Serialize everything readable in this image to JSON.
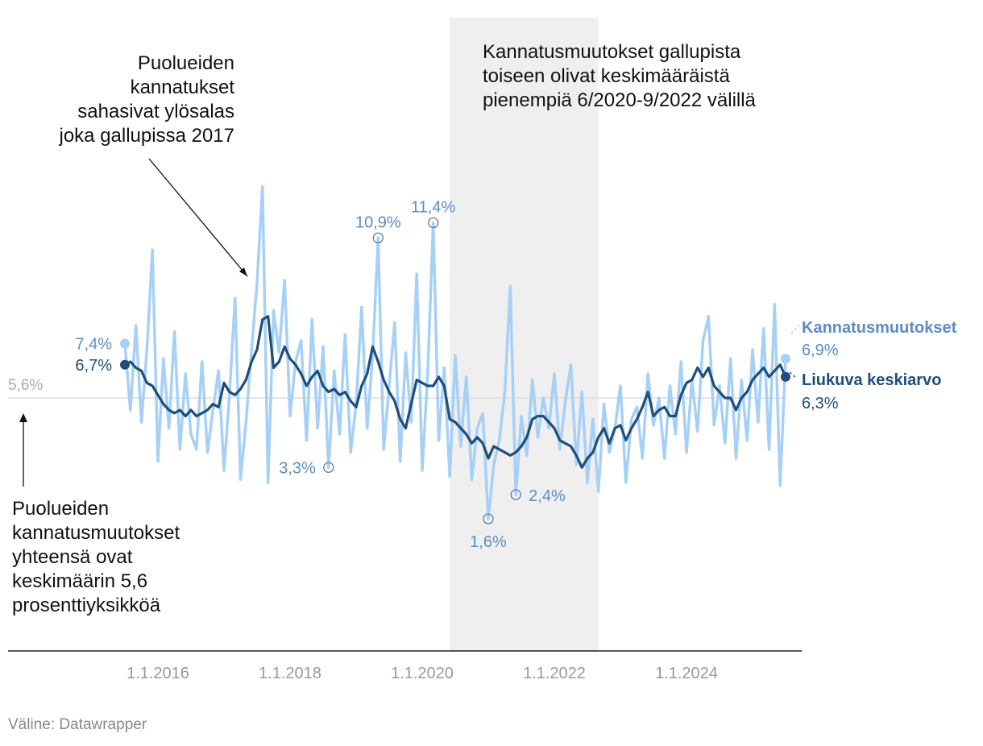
{
  "chart_data": {
    "type": "line",
    "x_ticks": [
      "1.1.2016",
      "1.1.2018",
      "1.1.2020",
      "1.1.2022",
      "1.1.2024"
    ],
    "reference_line": {
      "value": 5.6,
      "label": "5,6%"
    },
    "shaded_period": {
      "start": "2020-06",
      "end": "2022-09"
    },
    "series": [
      {
        "name": "Kannatusmuutokset",
        "color": "#a7d0f7",
        "end_label": "6,9%",
        "x": [
          "2015-07",
          "2015-08",
          "2015-09",
          "2015-10",
          "2015-11",
          "2015-12",
          "2016-01",
          "2016-02",
          "2016-03",
          "2016-04",
          "2016-05",
          "2016-06",
          "2016-07",
          "2016-08",
          "2016-09",
          "2016-10",
          "2016-11",
          "2016-12",
          "2017-01",
          "2017-02",
          "2017-03",
          "2017-04",
          "2017-05",
          "2017-06",
          "2017-07",
          "2017-08",
          "2017-09",
          "2017-10",
          "2017-11",
          "2017-12",
          "2018-01",
          "2018-02",
          "2018-03",
          "2018-04",
          "2018-05",
          "2018-06",
          "2018-07",
          "2018-08",
          "2018-09",
          "2018-10",
          "2018-11",
          "2018-12",
          "2019-01",
          "2019-02",
          "2019-03",
          "2019-04",
          "2019-05",
          "2019-06",
          "2019-07",
          "2019-08",
          "2019-09",
          "2019-10",
          "2019-11",
          "2019-12",
          "2020-01",
          "2020-02",
          "2020-03",
          "2020-04",
          "2020-05",
          "2020-06",
          "2020-07",
          "2020-08",
          "2020-09",
          "2020-10",
          "2020-11",
          "2020-12",
          "2021-01",
          "2021-02",
          "2021-03",
          "2021-04",
          "2021-05",
          "2021-06",
          "2021-07",
          "2021-08",
          "2021-09",
          "2021-10",
          "2021-11",
          "2021-12",
          "2022-01",
          "2022-02",
          "2022-03",
          "2022-04",
          "2022-05",
          "2022-06",
          "2022-07",
          "2022-08",
          "2022-09",
          "2022-10",
          "2022-11",
          "2022-12",
          "2023-01",
          "2023-02",
          "2023-03",
          "2023-04",
          "2023-05",
          "2023-06",
          "2023-07",
          "2023-08",
          "2023-09",
          "2023-10",
          "2023-11",
          "2023-12",
          "2024-01",
          "2024-02",
          "2024-03",
          "2024-04",
          "2024-05",
          "2024-06",
          "2024-07",
          "2024-08",
          "2024-09",
          "2024-10",
          "2024-11",
          "2024-12",
          "2025-01",
          "2025-02",
          "2025-03",
          "2025-04",
          "2025-05",
          "2025-06",
          "2025-07"
        ],
        "values": [
          7.4,
          5.2,
          8.0,
          4.8,
          7.2,
          10.5,
          3.5,
          6.9,
          4.6,
          7.8,
          3.9,
          6.4,
          4.4,
          3.9,
          6.8,
          3.8,
          5.2,
          6.5,
          3.2,
          5.7,
          8.9,
          2.9,
          4.8,
          7.2,
          9.4,
          12.6,
          2.8,
          8.5,
          7.1,
          9.5,
          5.0,
          6.8,
          7.5,
          4.2,
          8.2,
          4.6,
          7.3,
          3.3,
          6.5,
          4.4,
          7.7,
          3.8,
          5.4,
          8.6,
          4.6,
          7.0,
          10.9,
          3.9,
          6.0,
          8.1,
          3.5,
          7.1,
          4.8,
          9.7,
          3.2,
          6.4,
          11.4,
          4.2,
          6.6,
          3.0,
          7.0,
          4.0,
          6.3,
          2.9,
          4.6,
          5.1,
          1.6,
          3.4,
          4.2,
          5.8,
          9.3,
          2.4,
          5.0,
          3.7,
          6.2,
          4.3,
          5.6,
          4.6,
          6.4,
          3.9,
          5.5,
          6.7,
          3.4,
          5.8,
          2.8,
          4.9,
          2.5,
          5.4,
          3.8,
          4.6,
          6.0,
          2.8,
          4.9,
          5.3,
          3.6,
          6.4,
          4.7,
          5.6,
          3.6,
          6.0,
          4.4,
          6.8,
          3.8,
          6.2,
          4.5,
          7.5,
          8.3,
          4.7,
          6.0,
          4.1,
          6.9,
          3.6,
          6.2,
          4.2,
          7.2,
          4.8,
          7.9,
          3.9,
          8.7,
          2.7,
          6.9
        ]
      },
      {
        "name": "Liukuva keskiarvo",
        "color": "#1f4e79",
        "end_label": "6,3%",
        "x": [
          "2015-07",
          "2015-08",
          "2015-09",
          "2015-10",
          "2015-11",
          "2015-12",
          "2016-01",
          "2016-02",
          "2016-03",
          "2016-04",
          "2016-05",
          "2016-06",
          "2016-07",
          "2016-08",
          "2016-09",
          "2016-10",
          "2016-11",
          "2016-12",
          "2017-01",
          "2017-02",
          "2017-03",
          "2017-04",
          "2017-05",
          "2017-06",
          "2017-07",
          "2017-08",
          "2017-09",
          "2017-10",
          "2017-11",
          "2017-12",
          "2018-01",
          "2018-02",
          "2018-03",
          "2018-04",
          "2018-05",
          "2018-06",
          "2018-07",
          "2018-08",
          "2018-09",
          "2018-10",
          "2018-11",
          "2018-12",
          "2019-01",
          "2019-02",
          "2019-03",
          "2019-04",
          "2019-05",
          "2019-06",
          "2019-07",
          "2019-08",
          "2019-09",
          "2019-10",
          "2019-11",
          "2019-12",
          "2020-01",
          "2020-02",
          "2020-03",
          "2020-04",
          "2020-05",
          "2020-06",
          "2020-07",
          "2020-08",
          "2020-09",
          "2020-10",
          "2020-11",
          "2020-12",
          "2021-01",
          "2021-02",
          "2021-03",
          "2021-04",
          "2021-05",
          "2021-06",
          "2021-07",
          "2021-08",
          "2021-09",
          "2021-10",
          "2021-11",
          "2021-12",
          "2022-01",
          "2022-02",
          "2022-03",
          "2022-04",
          "2022-05",
          "2022-06",
          "2022-07",
          "2022-08",
          "2022-09",
          "2022-10",
          "2022-11",
          "2022-12",
          "2023-01",
          "2023-02",
          "2023-03",
          "2023-04",
          "2023-05",
          "2023-06",
          "2023-07",
          "2023-08",
          "2023-09",
          "2023-10",
          "2023-11",
          "2023-12",
          "2024-01",
          "2024-02",
          "2024-03",
          "2024-04",
          "2024-05",
          "2024-06",
          "2024-07",
          "2024-08",
          "2024-09",
          "2024-10",
          "2024-11",
          "2024-12",
          "2025-01",
          "2025-02",
          "2025-03",
          "2025-04",
          "2025-05",
          "2025-06",
          "2025-07"
        ],
        "values": [
          6.7,
          6.8,
          6.6,
          6.5,
          6.1,
          6.0,
          5.7,
          5.4,
          5.2,
          5.1,
          5.2,
          5.0,
          5.2,
          5.0,
          5.1,
          5.2,
          5.4,
          5.3,
          6.1,
          5.8,
          5.7,
          5.9,
          6.2,
          6.8,
          7.2,
          8.2,
          8.3,
          6.6,
          6.8,
          7.3,
          6.9,
          6.7,
          6.4,
          6.0,
          6.3,
          6.5,
          6.0,
          5.8,
          5.9,
          5.7,
          5.8,
          5.5,
          5.3,
          6.0,
          6.4,
          7.3,
          6.8,
          6.2,
          5.8,
          5.5,
          4.9,
          4.6,
          5.4,
          6.2,
          6.1,
          6.0,
          6.0,
          6.3,
          6.0,
          4.9,
          4.8,
          4.6,
          4.4,
          4.1,
          4.3,
          4.1,
          3.6,
          4.0,
          3.9,
          3.8,
          3.7,
          3.8,
          4.0,
          4.3,
          4.9,
          5.0,
          5.0,
          4.8,
          4.6,
          4.2,
          4.1,
          4.0,
          3.7,
          3.3,
          3.6,
          3.8,
          4.3,
          4.6,
          4.1,
          4.6,
          4.7,
          4.2,
          4.6,
          4.9,
          5.3,
          5.8,
          5.0,
          5.2,
          5.3,
          5.0,
          5.0,
          5.7,
          6.1,
          6.2,
          6.6,
          6.3,
          6.6,
          6.0,
          5.8,
          5.6,
          5.6,
          5.2,
          5.6,
          5.8,
          6.2,
          6.4,
          6.6,
          6.3,
          6.5,
          6.7,
          6.3
        ]
      }
    ],
    "point_labels": [
      {
        "label": "7,4%",
        "series": "Kannatusmuutokset",
        "x": "2015-07",
        "y": 7.4
      },
      {
        "label": "6,7%",
        "series": "Liukuva keskiarvo",
        "x": "2015-07",
        "y": 6.7
      },
      {
        "label": "3,3%",
        "series": "Kannatusmuutokset",
        "x": "2018-08",
        "y": 3.3
      },
      {
        "label": "10,9%",
        "series": "Kannatusmuutokset",
        "x": "2019-05",
        "y": 10.9
      },
      {
        "label": "11,4%",
        "series": "Kannatusmuutokset",
        "x": "2020-03",
        "y": 11.4
      },
      {
        "label": "1,6%",
        "series": "Kannatusmuutokset",
        "x": "2021-01",
        "y": 1.6
      },
      {
        "label": "2,4%",
        "series": "Kannatusmuutokset",
        "x": "2021-06",
        "y": 2.4
      }
    ],
    "annotations": {
      "shaded": "Kannatusmuutokset gallupista\ntoiseen olivat keskimääräistä\npienempiä 6/2020-9/2022 välillä",
      "spike": "Puolueiden\nkannatukset\nsahasivat ylösalas\njoka gallupissa 2017",
      "average": "Puolueiden\nkannatusmuutokset\nyhteensä ovat\nkeskimäärin 5,6\nprosenttiyksikköä"
    },
    "ylim": [
      0,
      13
    ]
  },
  "source": "Väline: Datawrapper"
}
